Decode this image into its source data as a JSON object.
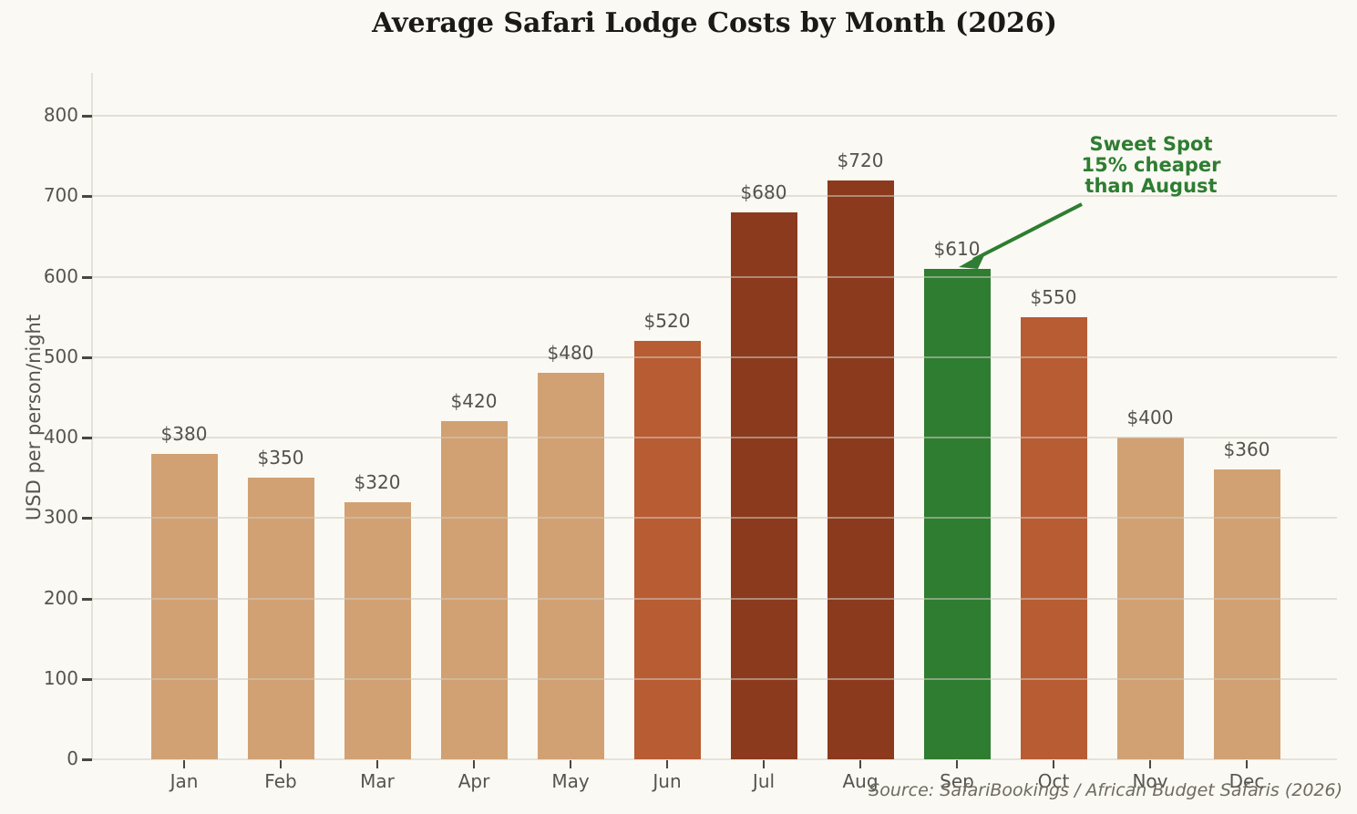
{
  "title": "Average Safari Lodge Costs by Month (2026)",
  "source_note": "Source: SafariBookings / African Budget Safaris (2026)",
  "colors": {
    "background": "#fbf9f3",
    "bar_tan": "#d1a173",
    "bar_terracotta": "#b85c33",
    "bar_dark_brick": "#8b3a1d",
    "bar_green": "#2e7d31",
    "annotation_green": "#2e7d32",
    "text_gray": "#57534d",
    "title_color": "#1c1a17"
  },
  "chart_data": {
    "type": "bar",
    "title": "Average Safari Lodge Costs by Month (2026)",
    "xlabel": "",
    "ylabel": "USD per person/night",
    "categories": [
      "Jan",
      "Feb",
      "Mar",
      "Apr",
      "May",
      "Jun",
      "Jul",
      "Aug",
      "Sep",
      "Oct",
      "Nov",
      "Dec"
    ],
    "values": [
      380,
      350,
      320,
      420,
      480,
      520,
      680,
      720,
      610,
      550,
      400,
      360
    ],
    "bar_labels": [
      "$380",
      "$350",
      "$320",
      "$420",
      "$480",
      "$520",
      "$680",
      "$720",
      "$610",
      "$550",
      "$400",
      "$360"
    ],
    "bar_colors": [
      "#d1a173",
      "#d1a173",
      "#d1a173",
      "#d1a173",
      "#d1a173",
      "#b85c33",
      "#8b3a1d",
      "#8b3a1d",
      "#2e7d31",
      "#b85c33",
      "#d1a173",
      "#d1a173"
    ],
    "yticks": [
      0,
      100,
      200,
      300,
      400,
      500,
      600,
      700,
      800
    ],
    "ylim": [
      0,
      853
    ],
    "grid": true,
    "legend": "none",
    "annotation": {
      "lines": [
        "Sweet Spot",
        "15% cheaper",
        "than August"
      ],
      "color": "#2e7d32",
      "target_month": "Sep",
      "target_value": 610
    }
  }
}
